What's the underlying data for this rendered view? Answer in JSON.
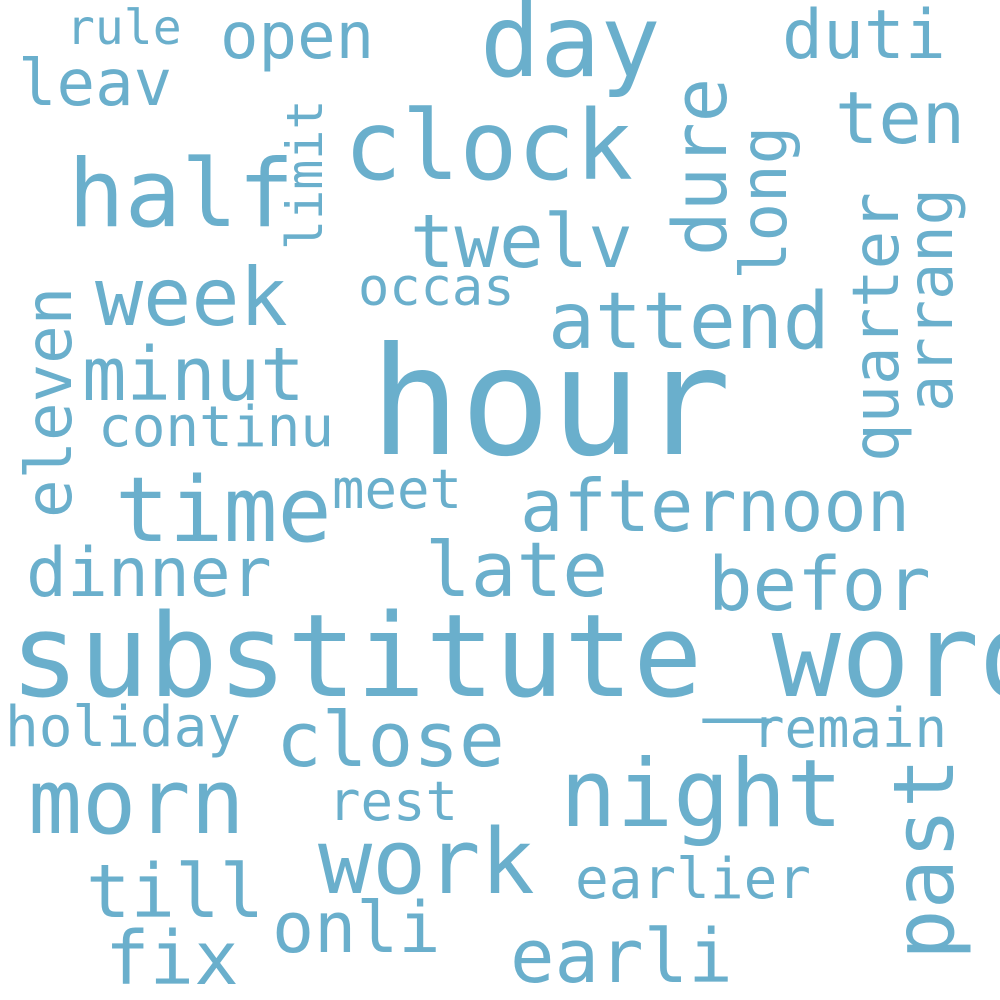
{
  "colors": {
    "word": "#6aafcc",
    "background": "#ffffff"
  },
  "words": {
    "hour": "hour",
    "substitute_word": "substitute_word",
    "clock": "clock",
    "day": "day",
    "half": "half",
    "night": "night",
    "time": "time",
    "week": "week",
    "morn": "morn",
    "work": "work",
    "attend": "attend",
    "afternoon": "afternoon",
    "late": "late",
    "twelv": "twelv",
    "befor": "befor",
    "close": "close",
    "past": "past",
    "earli": "earli",
    "dinner": "dinner",
    "minut": "minut",
    "onli": "onli",
    "till": "till",
    "eleven": "eleven",
    "open": "open",
    "leav": "leav",
    "ten": "ten",
    "duti": "duti",
    "dure": "dure",
    "fix": "fix",
    "quarter": "quarter",
    "earlier": "earlier",
    "holiday": "holiday",
    "long": "long",
    "arrang": "arrang",
    "remain": "remain",
    "continu": "continu",
    "rest": "rest",
    "occas": "occas",
    "meet": "meet",
    "rule": "rule",
    "limit": "limit"
  }
}
